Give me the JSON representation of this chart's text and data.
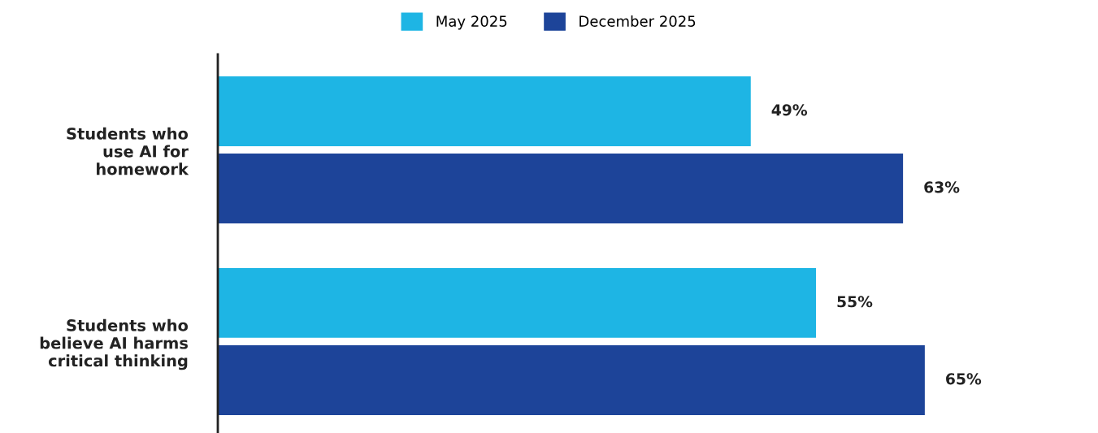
{
  "chart_data": {
    "type": "bar",
    "orientation": "horizontal",
    "categories": [
      "Students who\nuse AI for\nhomework",
      "Students who\nbelieve AI harms\ncritical thinking"
    ],
    "series": [
      {
        "name": "May 2025",
        "color": "#1eb5e4",
        "values": [
          49,
          55
        ],
        "value_labels": [
          "49%",
          "55%"
        ]
      },
      {
        "name": "December 2025",
        "color": "#1d4499",
        "values": [
          63,
          65
        ],
        "value_labels": [
          "63%",
          "65%"
        ]
      }
    ],
    "tick_labels": "y",
    "legend": "top",
    "grid": false
  }
}
